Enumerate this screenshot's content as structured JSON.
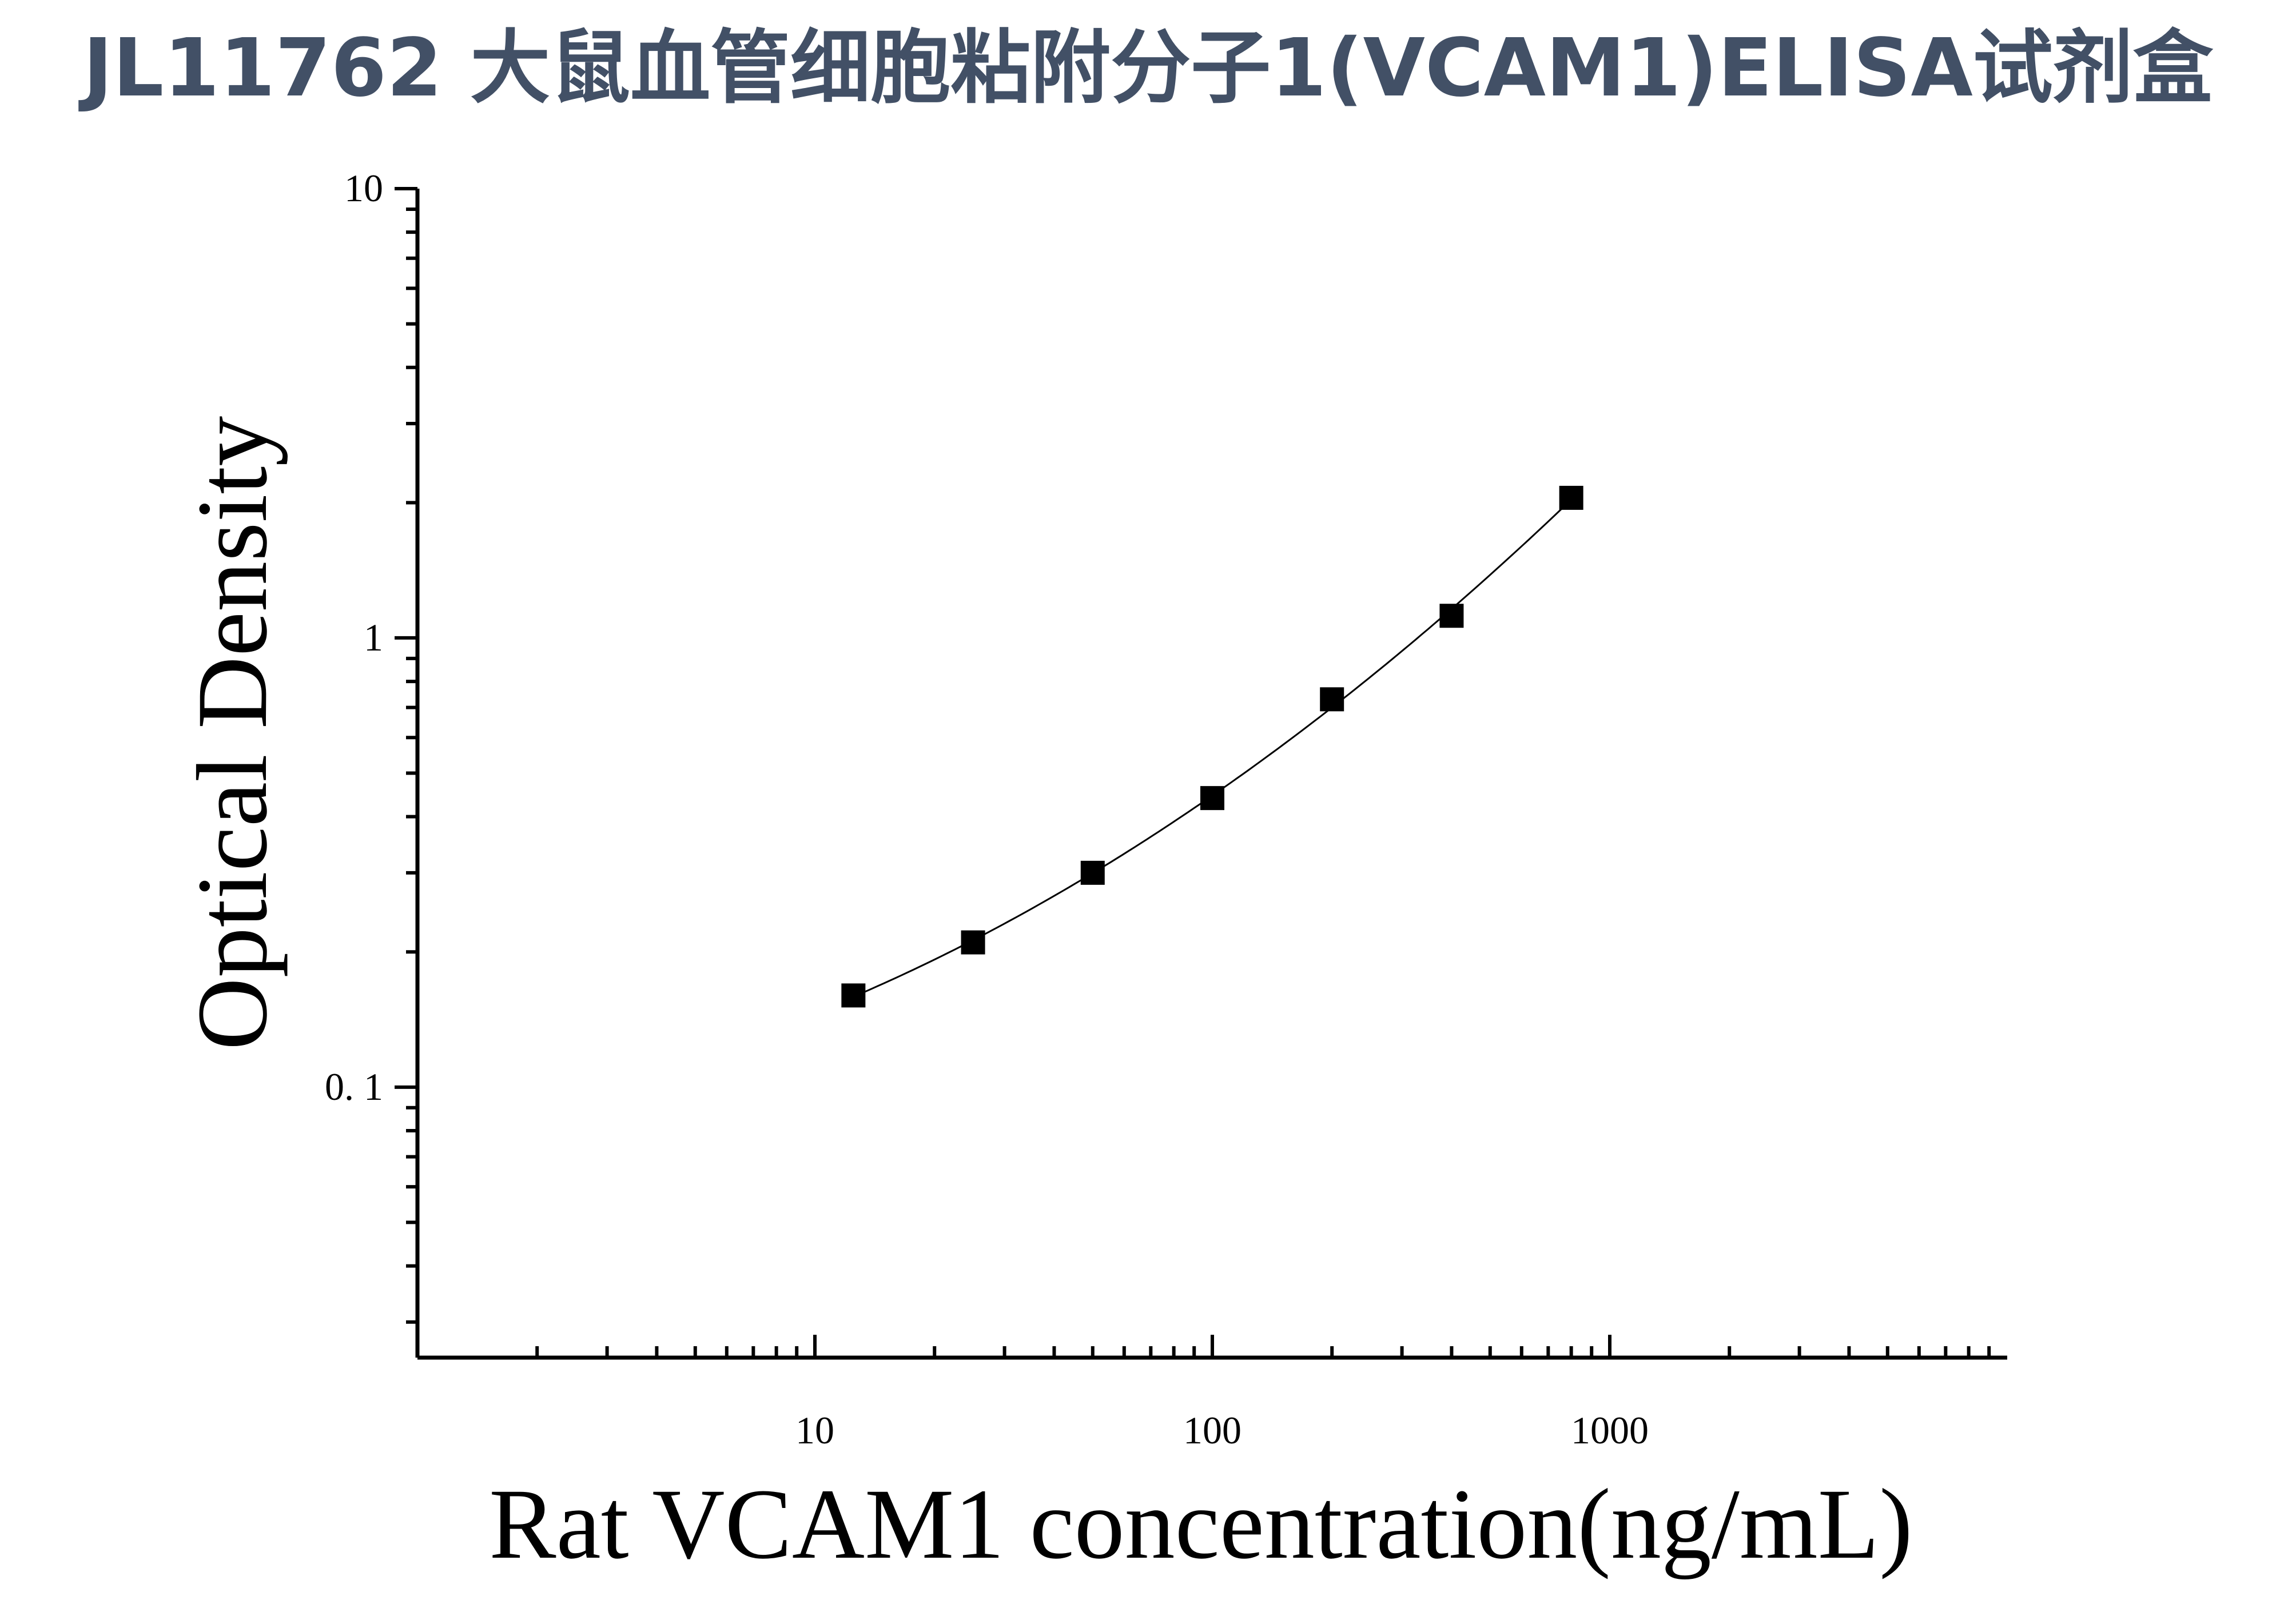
{
  "title": "JL11762 大鼠血管细胞粘附分子1(VCAM1)ELISA试剂盒",
  "chart_data": {
    "type": "scatter",
    "x_scale": "log",
    "y_scale": "log",
    "xlabel": "Rat VCAM1 concentration(ng/mL)",
    "ylabel": "Optical Density",
    "xlim": [
      1,
      10000
    ],
    "ylim": [
      0.025,
      10
    ],
    "x_tick_labels": [
      "10",
      "100",
      "1000"
    ],
    "y_tick_labels": [
      "10",
      "1",
      "0. 1"
    ],
    "x_tick_values": [
      10,
      100,
      1000
    ],
    "y_tick_values": [
      10,
      1,
      0.1
    ],
    "series": [
      {
        "x": [
          12.5,
          25,
          50,
          100,
          200,
          400,
          800
        ],
        "y": [
          0.16,
          0.21,
          0.3,
          0.44,
          0.73,
          1.12,
          2.05
        ]
      }
    ],
    "curve_fit": true,
    "grid": false,
    "marker": "square",
    "colors": {
      "marker": "#000000",
      "title": "#425066"
    }
  }
}
